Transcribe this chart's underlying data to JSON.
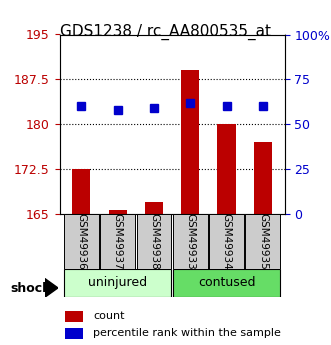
{
  "title": "GDS1238 / rc_AA800535_at",
  "samples": [
    "GSM49936",
    "GSM49937",
    "GSM49938",
    "GSM49933",
    "GSM49934",
    "GSM49935"
  ],
  "red_values": [
    172.5,
    165.7,
    167.0,
    189.0,
    180.0,
    177.0
  ],
  "blue_values": [
    60,
    58,
    59,
    62,
    60,
    60
  ],
  "ylim_left": [
    165,
    195
  ],
  "ylim_right": [
    0,
    100
  ],
  "yticks_left": [
    165,
    172.5,
    180,
    187.5,
    195
  ],
  "yticks_right": [
    0,
    25,
    50,
    75,
    100
  ],
  "ytick_labels_left": [
    "165",
    "172.5",
    "180",
    "187.5",
    "195"
  ],
  "ytick_labels_right": [
    "0",
    "25",
    "50",
    "75",
    "100%"
  ],
  "bar_base": 165,
  "bar_color": "#bb0000",
  "dot_color": "#0000cc",
  "group1_label": "uninjured",
  "group2_label": "contused",
  "factor_label": "shock",
  "group1_color": "#ccffcc",
  "group2_color": "#66dd66",
  "sample_box_color": "#cccccc",
  "bg_color": "#ffffff",
  "bar_width": 0.5,
  "dot_size": 60
}
